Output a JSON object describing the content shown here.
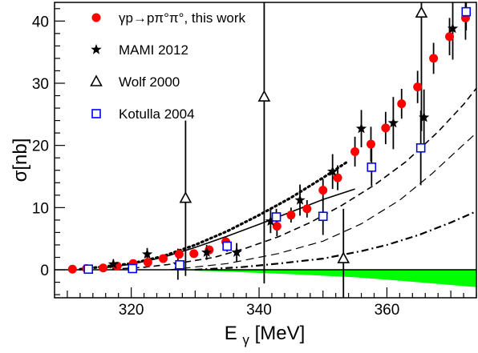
{
  "chart_data": {
    "type": "scatter",
    "xlabel_main": "E",
    "xlabel_sub": "γ",
    "xlabel_unit": "[MeV]",
    "ylabel": "σ[nb]",
    "xlim": [
      308,
      374
    ],
    "ylim": [
      -4.5,
      43
    ],
    "xticks": [
      320,
      340,
      360
    ],
    "yticks": [
      0,
      10,
      20,
      30,
      40
    ],
    "grid": false,
    "legend_position": "top-left",
    "legend": [
      {
        "label": "γp→pπ°π°, this work",
        "marker": "filled-circle",
        "color": "#ff0000"
      },
      {
        "label": "MAMI 2012",
        "marker": "star",
        "color": "#000000"
      },
      {
        "label": "Wolf 2000",
        "marker": "open-triangle",
        "color": "#000000"
      },
      {
        "label": "Kotulla 2004",
        "marker": "open-square",
        "color": "#0000ff"
      }
    ],
    "series": [
      {
        "name": "γp→pπ°π°, this work",
        "marker": "filled-circle",
        "color": "#ff0000",
        "points": [
          {
            "x": 310.8,
            "y": 0.1
          },
          {
            "x": 313.0,
            "y": 0.2
          },
          {
            "x": 315.6,
            "y": 0.3
          },
          {
            "x": 317.8,
            "y": 0.6
          },
          {
            "x": 320.3,
            "y": 1.0
          },
          {
            "x": 322.6,
            "y": 1.2
          },
          {
            "x": 325.0,
            "y": 1.8
          },
          {
            "x": 327.5,
            "y": 2.5
          },
          {
            "x": 329.8,
            "y": 2.6
          },
          {
            "x": 332.2,
            "y": 3.2
          },
          {
            "x": 334.8,
            "y": 4.5
          },
          {
            "x": 342.8,
            "y": 7.0
          },
          {
            "x": 345.0,
            "y": 8.8
          },
          {
            "x": 347.5,
            "y": 9.8
          },
          {
            "x": 350.0,
            "y": 12.8
          },
          {
            "x": 352.3,
            "y": 14.8
          },
          {
            "x": 355.0,
            "y": 19.0
          },
          {
            "x": 357.5,
            "y": 20.2
          },
          {
            "x": 359.8,
            "y": 22.8
          },
          {
            "x": 362.3,
            "y": 26.7
          },
          {
            "x": 364.8,
            "y": 29.4
          },
          {
            "x": 367.3,
            "y": 34.0
          },
          {
            "x": 369.8,
            "y": 37.5
          },
          {
            "x": 372.3,
            "y": 40.5
          }
        ],
        "errors": [
          0,
          0,
          0,
          0,
          0,
          0,
          0.5,
          0.6,
          0.6,
          0.7,
          0.9,
          1.6,
          1.2,
          1.4,
          1.8,
          2.0,
          2.4,
          2.8,
          2.6,
          2.4,
          2.6,
          2.5,
          3.0,
          3.5
        ]
      },
      {
        "name": "MAMI 2012",
        "marker": "star",
        "color": "#000000",
        "points": [
          {
            "x": 317.2,
            "y": 0.9
          },
          {
            "x": 322.5,
            "y": 2.5
          },
          {
            "x": 327.3,
            "y": 0.9
          },
          {
            "x": 331.8,
            "y": 2.8
          },
          {
            "x": 336.5,
            "y": 2.8
          },
          {
            "x": 341.8,
            "y": 7.8
          },
          {
            "x": 346.4,
            "y": 11.2
          },
          {
            "x": 351.5,
            "y": 15.8
          },
          {
            "x": 356.0,
            "y": 22.7
          },
          {
            "x": 361.0,
            "y": 23.6
          },
          {
            "x": 365.8,
            "y": 24.5
          },
          {
            "x": 370.3,
            "y": 38.8
          }
        ],
        "errors": [
          0.8,
          1.0,
          2.5,
          1.2,
          1.5,
          1.9,
          2.5,
          2.8,
          3.0,
          4.2,
          4.5,
          5.0
        ]
      },
      {
        "name": "Wolf 2000",
        "marker": "open-triangle",
        "color": "#000000",
        "points": [
          {
            "x": 328.5,
            "y": 11.5
          },
          {
            "x": 340.8,
            "y": 27.8
          },
          {
            "x": 353.2,
            "y": 1.8
          },
          {
            "x": 365.4,
            "y": 41.3
          }
        ],
        "errors": [
          12.5,
          30.0,
          8.0,
          19.0
        ]
      },
      {
        "name": "Kotulla 2004",
        "marker": "open-square",
        "color": "#0000ff",
        "points": [
          {
            "x": 313.3,
            "y": 0.1
          },
          {
            "x": 320.2,
            "y": 0.2
          },
          {
            "x": 327.6,
            "y": 0.8
          },
          {
            "x": 335.0,
            "y": 3.8
          },
          {
            "x": 342.7,
            "y": 8.5
          },
          {
            "x": 350.0,
            "y": 8.6
          },
          {
            "x": 357.6,
            "y": 16.5
          },
          {
            "x": 365.3,
            "y": 19.6
          },
          {
            "x": 372.4,
            "y": 41.5
          }
        ],
        "errors": [
          0,
          0,
          0,
          0.9,
          1.3,
          3.0,
          3.0,
          6.0,
          3.0
        ]
      }
    ],
    "curves": [
      {
        "style": "dotted",
        "points": [
          [
            312,
            0.1
          ],
          [
            320,
            1.0
          ],
          [
            325,
            2.2
          ],
          [
            330,
            4.0
          ],
          [
            335,
            6.2
          ],
          [
            340,
            8.8
          ],
          [
            345,
            11.6
          ],
          [
            350,
            14.8
          ],
          [
            354,
            17.5
          ]
        ]
      },
      {
        "style": "solid",
        "points": [
          [
            315,
            0.2
          ],
          [
            320,
            0.9
          ],
          [
            325,
            2.0
          ],
          [
            330,
            3.6
          ],
          [
            335,
            5.4
          ],
          [
            340,
            7.3
          ],
          [
            345,
            9.3
          ],
          [
            350,
            11.3
          ],
          [
            355,
            13.0
          ]
        ]
      },
      {
        "style": "dashed",
        "points": [
          [
            317,
            0.1
          ],
          [
            322,
            0.4
          ],
          [
            327,
            1.0
          ],
          [
            333,
            2.0
          ],
          [
            338,
            3.5
          ],
          [
            343,
            5.3
          ],
          [
            348,
            7.6
          ],
          [
            353,
            10.4
          ],
          [
            358,
            13.6
          ],
          [
            363,
            17.4
          ],
          [
            368,
            22.2
          ],
          [
            372,
            26.6
          ],
          [
            374,
            29.2
          ]
        ]
      },
      {
        "style": "long-dashed",
        "points": [
          [
            326,
            0.0
          ],
          [
            335,
            1.0
          ],
          [
            343,
            2.6
          ],
          [
            350,
            4.6
          ],
          [
            356,
            7.4
          ],
          [
            362,
            11.2
          ],
          [
            367,
            15.4
          ],
          [
            371,
            19.2
          ],
          [
            374,
            22.0
          ]
        ]
      },
      {
        "style": "dash-dot",
        "points": [
          [
            330,
            0.0
          ],
          [
            337,
            0.4
          ],
          [
            343,
            1.0
          ],
          [
            350,
            1.8
          ],
          [
            356,
            3.0
          ],
          [
            360,
            4.0
          ],
          [
            365,
            5.6
          ],
          [
            370,
            7.6
          ],
          [
            374,
            9.4
          ]
        ]
      }
    ],
    "band": {
      "color": "#00ff00",
      "points": [
        [
          326,
          0.0
        ],
        [
          335,
          -0.3
        ],
        [
          345,
          -0.7
        ],
        [
          355,
          -1.2
        ],
        [
          365,
          -2.0
        ],
        [
          374,
          -2.8
        ]
      ]
    }
  }
}
